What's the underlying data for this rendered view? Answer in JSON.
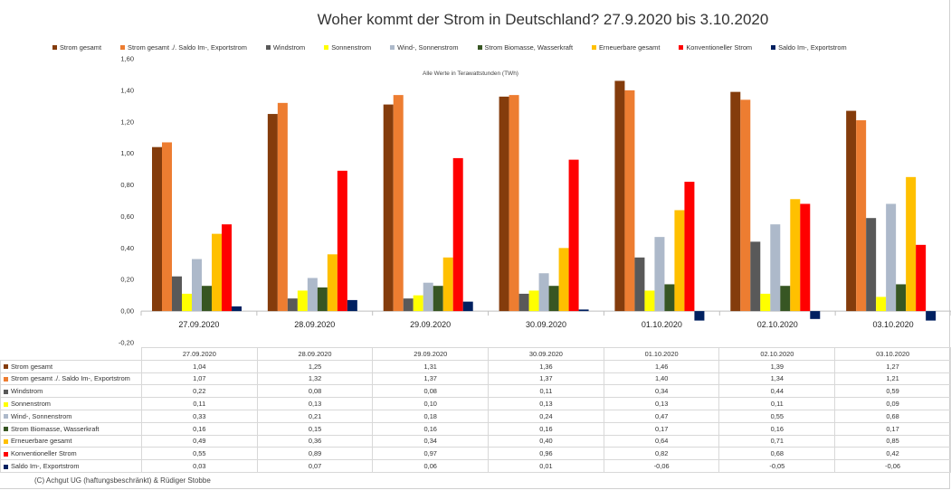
{
  "chart_data": {
    "type": "bar",
    "title": "Woher kommt der Strom in Deutschland? 27.9.2020 bis 3.10.2020",
    "annotation": "Alle Werte in Terawattstunden (TWh)",
    "categories": [
      "27.09.2020",
      "28.09.2020",
      "29.09.2020",
      "30.09.2020",
      "01.10.2020",
      "02.10.2020",
      "03.10.2020"
    ],
    "ylim": [
      -0.2,
      1.6
    ],
    "yticks": [
      "1,60",
      "1,40",
      "1,20",
      "1,00",
      "0,80",
      "0,60",
      "0,40",
      "0,20",
      "0,00",
      "-0,20"
    ],
    "grid": false,
    "legend_position": "top",
    "series": [
      {
        "name": "Strom gesamt",
        "color": "#843c0c",
        "values": [
          1.04,
          1.25,
          1.31,
          1.36,
          1.46,
          1.39,
          1.27
        ],
        "labels": [
          "1,04",
          "1,25",
          "1,31",
          "1,36",
          "1,46",
          "1,39",
          "1,27"
        ]
      },
      {
        "name": "Strom gesamt ./. Saldo Im-, Exportstrom",
        "color": "#ed7d31",
        "values": [
          1.07,
          1.32,
          1.37,
          1.37,
          1.4,
          1.34,
          1.21
        ],
        "labels": [
          "1,07",
          "1,32",
          "1,37",
          "1,37",
          "1,40",
          "1,34",
          "1,21"
        ]
      },
      {
        "name": "Windstrom",
        "color": "#595959",
        "values": [
          0.22,
          0.08,
          0.08,
          0.11,
          0.34,
          0.44,
          0.59
        ],
        "labels": [
          "0,22",
          "0,08",
          "0,08",
          "0,11",
          "0,34",
          "0,44",
          "0,59"
        ]
      },
      {
        "name": "Sonnenstrom",
        "color": "#ffff00",
        "values": [
          0.11,
          0.13,
          0.1,
          0.13,
          0.13,
          0.11,
          0.09
        ],
        "labels": [
          "0,11",
          "0,13",
          "0,10",
          "0,13",
          "0,13",
          "0,11",
          "0,09"
        ]
      },
      {
        "name": "Wind-, Sonnenstrom",
        "color": "#adb9ca",
        "values": [
          0.33,
          0.21,
          0.18,
          0.24,
          0.47,
          0.55,
          0.68
        ],
        "labels": [
          "0,33",
          "0,21",
          "0,18",
          "0,24",
          "0,47",
          "0,55",
          "0,68"
        ]
      },
      {
        "name": "Strom Biomasse, Wasserkraft",
        "color": "#375623",
        "values": [
          0.16,
          0.15,
          0.16,
          0.16,
          0.17,
          0.16,
          0.17
        ],
        "labels": [
          "0,16",
          "0,15",
          "0,16",
          "0,16",
          "0,17",
          "0,16",
          "0,17"
        ]
      },
      {
        "name": "Erneuerbare gesamt",
        "color": "#ffc000",
        "values": [
          0.49,
          0.36,
          0.34,
          0.4,
          0.64,
          0.71,
          0.85
        ],
        "labels": [
          "0,49",
          "0,36",
          "0,34",
          "0,40",
          "0,64",
          "0,71",
          "0,85"
        ]
      },
      {
        "name": "Konventioneller Strom",
        "color": "#ff0000",
        "values": [
          0.55,
          0.89,
          0.97,
          0.96,
          0.82,
          0.68,
          0.42
        ],
        "labels": [
          "0,55",
          "0,89",
          "0,97",
          "0,96",
          "0,82",
          "0,68",
          "0,42"
        ]
      },
      {
        "name": "Saldo Im-, Exportstrom",
        "color": "#002060",
        "values": [
          0.03,
          0.07,
          0.06,
          0.01,
          -0.06,
          -0.05,
          -0.06
        ],
        "labels": [
          "0,03",
          "0,07",
          "0,06",
          "0,01",
          "-0,06",
          "-0,05",
          "-0,06"
        ]
      }
    ]
  },
  "footer": {
    "copyright": "(C) Achgut UG (haftungsbeschränkt) & Rüdiger Stobbe"
  }
}
